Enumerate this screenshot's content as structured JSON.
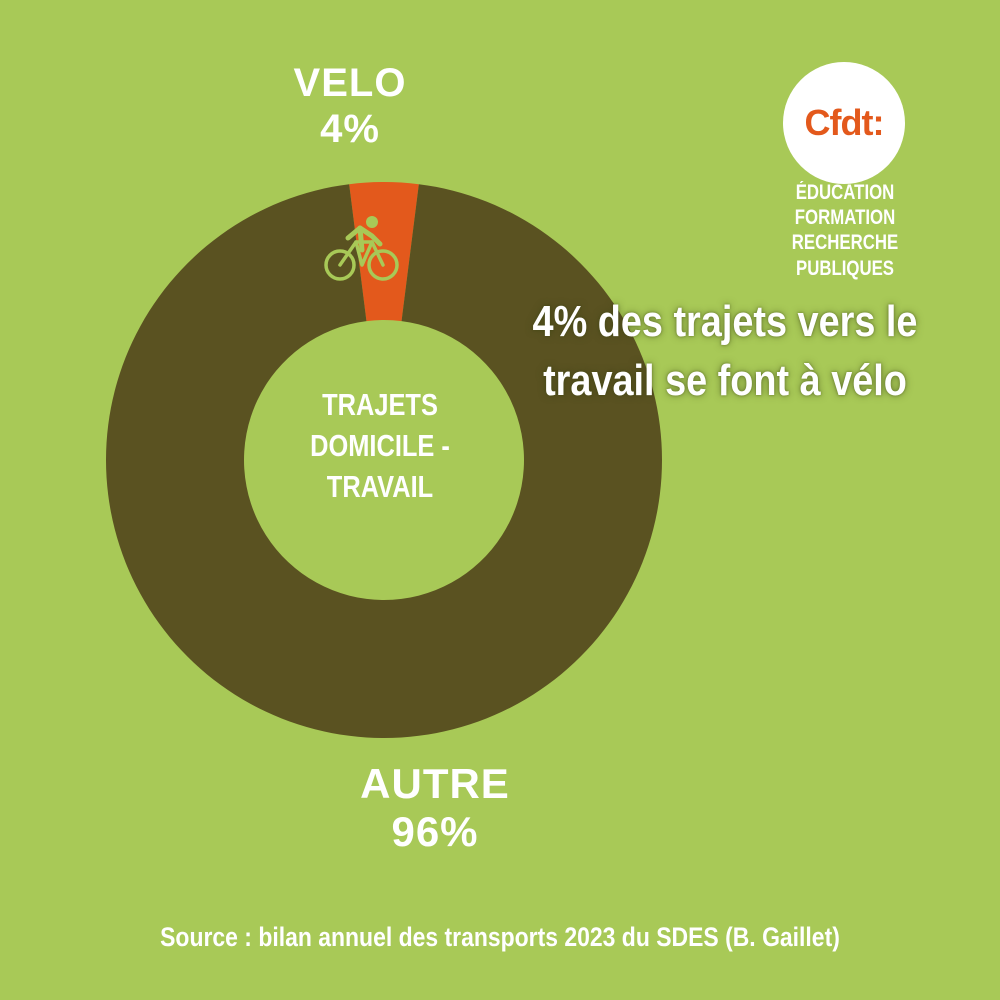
{
  "chart_data": {
    "type": "pie",
    "title": "",
    "center_label": [
      "TRAJETS",
      "DOMICILE -",
      "TRAVAIL"
    ],
    "slices": [
      {
        "name": "VELO",
        "value": 4,
        "value_label": "4%",
        "color": "#e3591c",
        "icon": "bicycle-icon"
      },
      {
        "name": "AUTRE",
        "value": 96,
        "value_label": "96%",
        "color": "#5a5221"
      }
    ]
  },
  "headline": [
    "4% des trajets vers le",
    "travail se font à vélo"
  ],
  "logo": {
    "text": "Cfdt:",
    "subtitle": [
      "ÉDUCATION FORMATION",
      "RECHERCHE PUBLIQUES"
    ]
  },
  "source": "Source : bilan annuel des transports 2023 du SDES (B. Gaillet)",
  "colors": {
    "background": "#a8c957",
    "accent": "#e3591c",
    "dark": "#5a5221"
  }
}
